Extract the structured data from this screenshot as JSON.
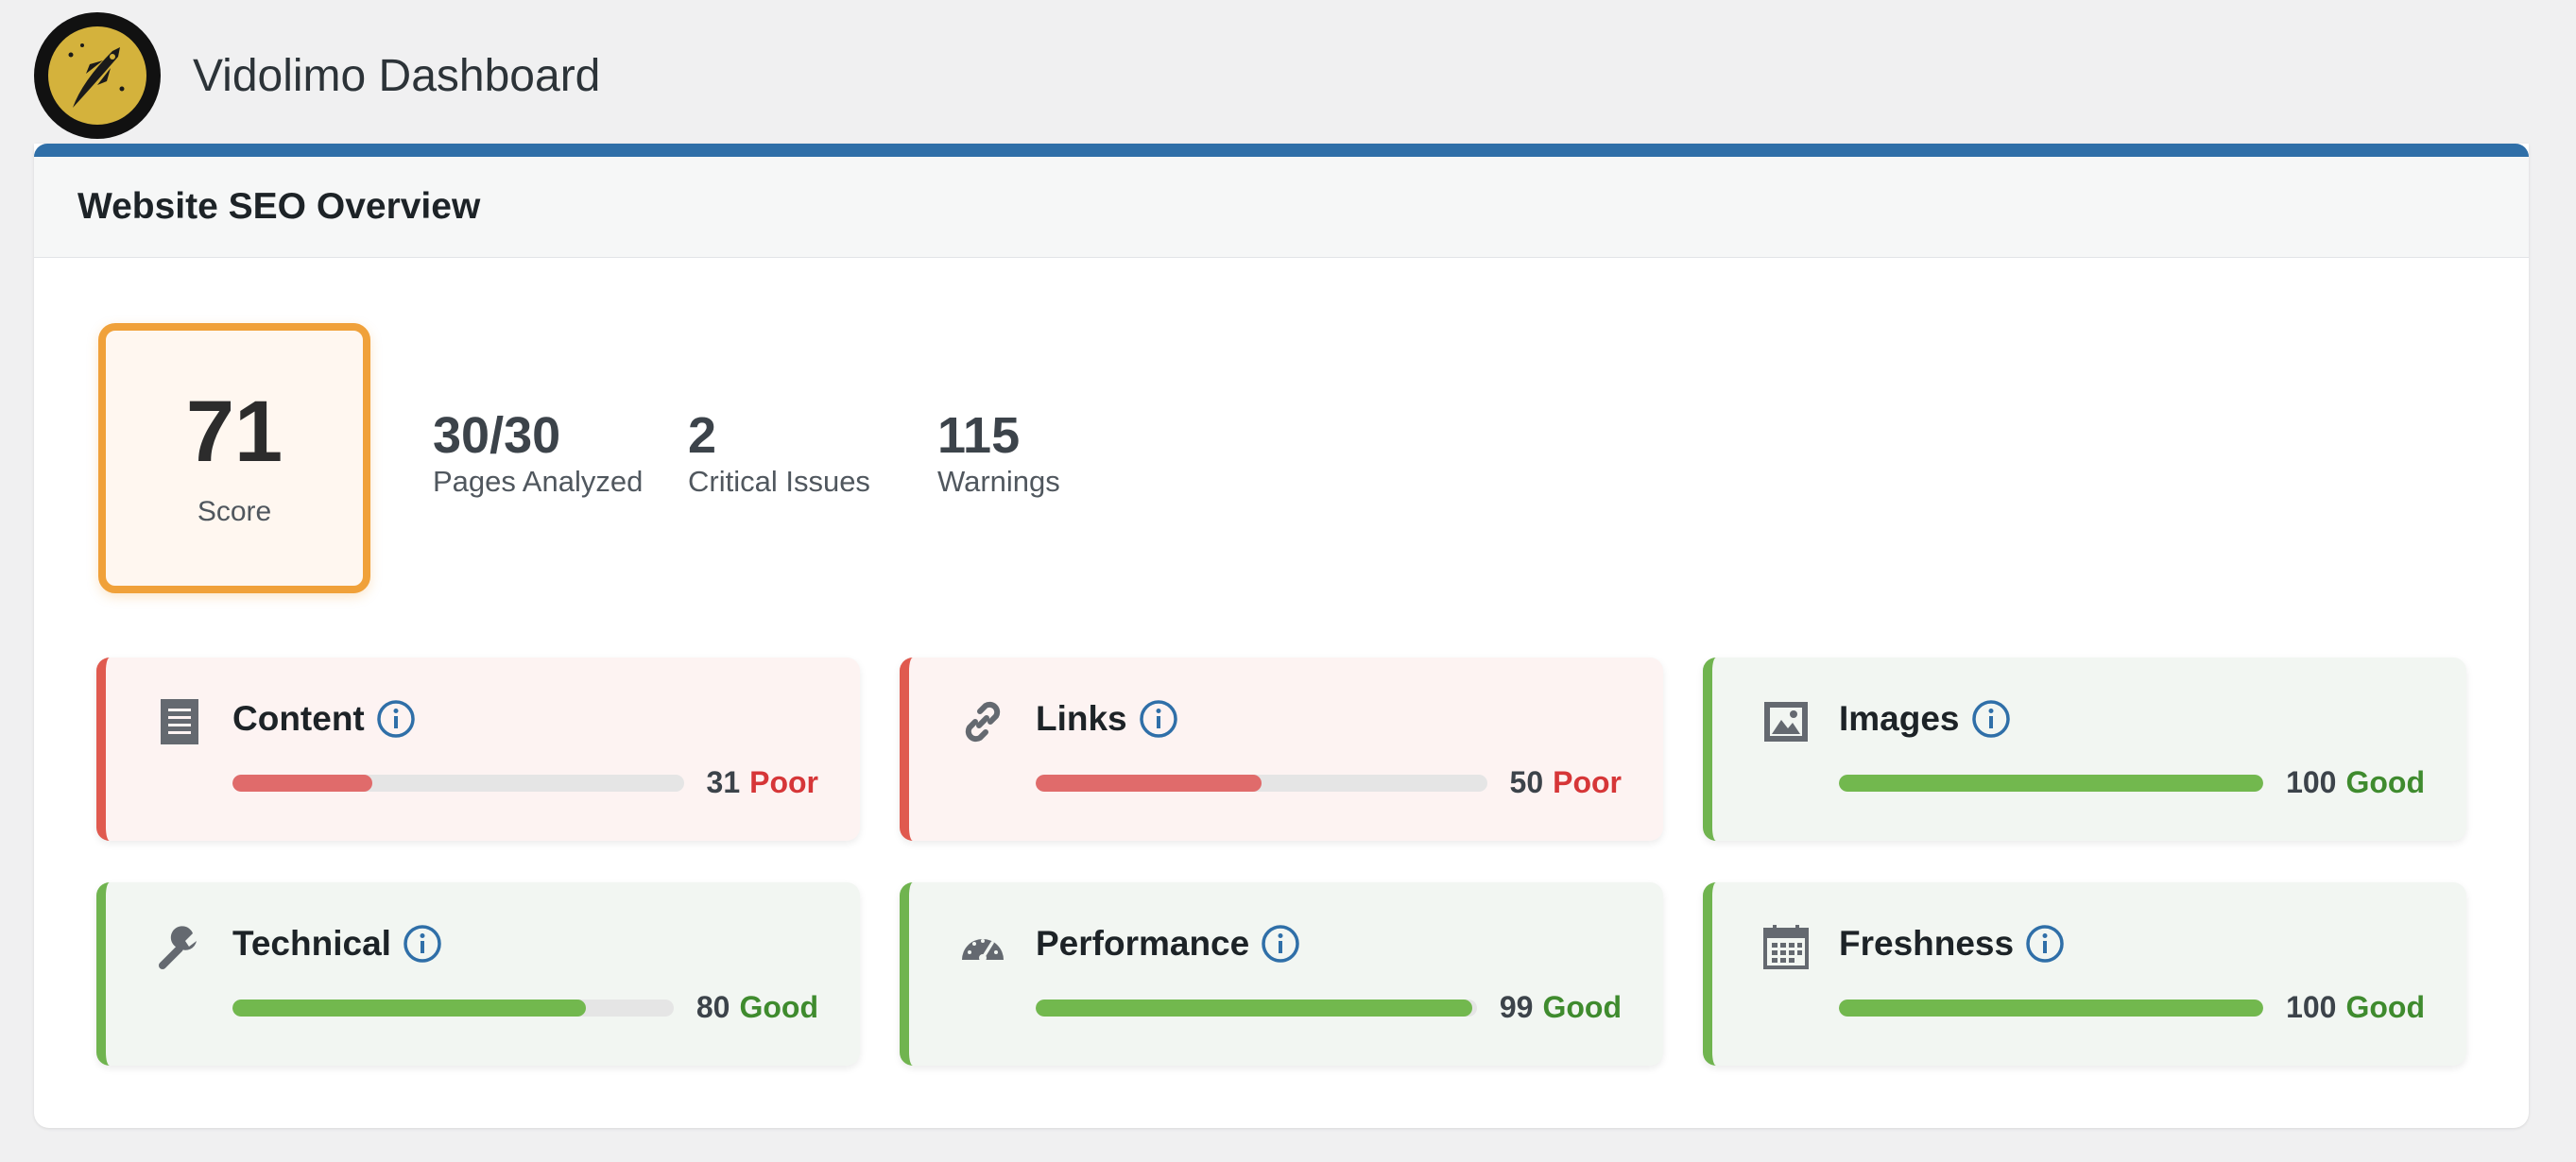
{
  "app": {
    "title": "Vidolimo Dashboard"
  },
  "panel": {
    "title": "Website SEO Overview"
  },
  "summary": {
    "score": "71",
    "score_label": "Score",
    "stats": [
      {
        "value": "30/30",
        "label": "Pages Analyzed"
      },
      {
        "value": "2",
        "label": "Critical Issues"
      },
      {
        "value": "115",
        "label": "Warnings"
      }
    ]
  },
  "categories": [
    {
      "title": "Content",
      "icon": "document-icon",
      "score": "31",
      "status": "Poor",
      "fill": 0.31
    },
    {
      "title": "Links",
      "icon": "link-icon",
      "score": "50",
      "status": "Poor",
      "fill": 0.5
    },
    {
      "title": "Images",
      "icon": "image-icon",
      "score": "100",
      "status": "Good",
      "fill": 1.0
    },
    {
      "title": "Technical",
      "icon": "wrench-icon",
      "score": "80",
      "status": "Good",
      "fill": 0.8
    },
    {
      "title": "Performance",
      "icon": "gauge-icon",
      "score": "99",
      "status": "Good",
      "fill": 0.99
    },
    {
      "title": "Freshness",
      "icon": "calendar-icon",
      "score": "100",
      "status": "Good",
      "fill": 1.0
    }
  ],
  "colors": {
    "accent": "#2f6fa8",
    "score_border": "#f0a13a",
    "poor": "#d63638",
    "good": "#3f8b2e"
  }
}
